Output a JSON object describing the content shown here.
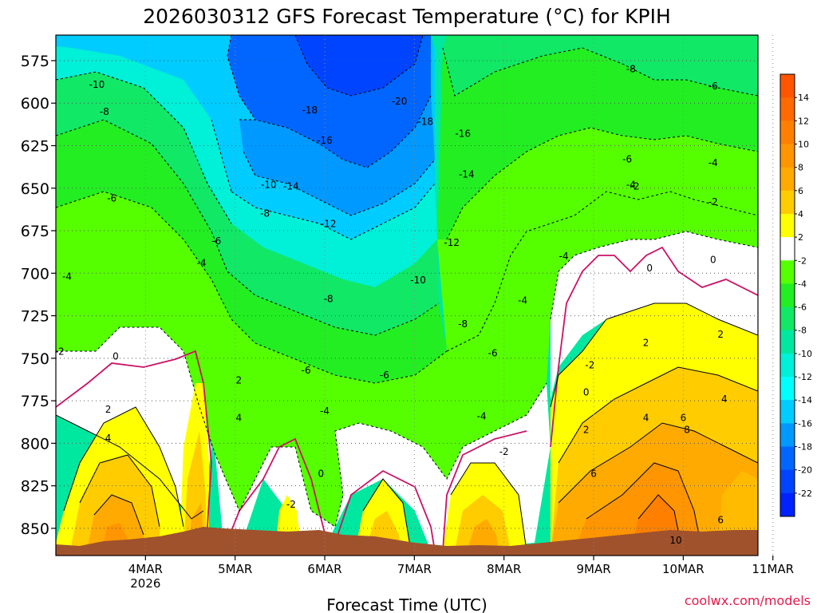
{
  "chart_data": {
    "type": "heatmap",
    "title": "2026030312 GFS Forecast Temperature (°C) for KPIH",
    "xlabel": "Forecast Time (UTC)",
    "ylabel": "",
    "credit": "coolwx.com/models",
    "y_axis": {
      "min": 560,
      "max": 866,
      "inverted": true,
      "ticks": [
        575,
        600,
        625,
        650,
        675,
        700,
        725,
        750,
        775,
        800,
        825,
        850
      ]
    },
    "x_axis": {
      "start_hour": -12,
      "end_hour": 176,
      "ticks": [
        {
          "hour": 12,
          "label": "4MAR",
          "sublabel": "2026"
        },
        {
          "hour": 36,
          "label": "5MAR",
          "sublabel": ""
        },
        {
          "hour": 60,
          "label": "6MAR",
          "sublabel": ""
        },
        {
          "hour": 84,
          "label": "7MAR",
          "sublabel": ""
        },
        {
          "hour": 108,
          "label": "8MAR",
          "sublabel": ""
        },
        {
          "hour": 132,
          "label": "9MAR",
          "sublabel": ""
        },
        {
          "hour": 156,
          "label": "10MAR",
          "sublabel": ""
        },
        {
          "hour": 180,
          "label": "11MAR",
          "sublabel": ""
        }
      ]
    },
    "grid": true,
    "colorbar": {
      "ticks": [
        14,
        12,
        10,
        8,
        6,
        4,
        2,
        -2,
        -4,
        -6,
        -8,
        -10,
        -12,
        -14,
        -16,
        -18,
        -20,
        -22
      ],
      "bands": [
        {
          "from": 14,
          "to": 16,
          "color": "#ff5500"
        },
        {
          "from": 12,
          "to": 14,
          "color": "#ff6a00"
        },
        {
          "from": 10,
          "to": 12,
          "color": "#ff8000"
        },
        {
          "from": 8,
          "to": 10,
          "color": "#ff9500"
        },
        {
          "from": 6,
          "to": 8,
          "color": "#ffaa00"
        },
        {
          "from": 4,
          "to": 6,
          "color": "#ffcc00"
        },
        {
          "from": 2,
          "to": 4,
          "color": "#ffff00"
        },
        {
          "from": -2,
          "to": 2,
          "color": "#ffffff"
        },
        {
          "from": -4,
          "to": -2,
          "color": "#55ff00"
        },
        {
          "from": -6,
          "to": -4,
          "color": "#22ee22"
        },
        {
          "from": -8,
          "to": -6,
          "color": "#11e866"
        },
        {
          "from": -10,
          "to": -8,
          "color": "#00e8a0"
        },
        {
          "from": -12,
          "to": -10,
          "color": "#00f0d8"
        },
        {
          "from": -14,
          "to": -12,
          "color": "#00ffff"
        },
        {
          "from": -16,
          "to": -14,
          "color": "#00ccff"
        },
        {
          "from": -18,
          "to": -16,
          "color": "#0099ff"
        },
        {
          "from": -20,
          "to": -18,
          "color": "#0066ff"
        },
        {
          "from": -22,
          "to": -20,
          "color": "#0044ff"
        },
        {
          "from": -24,
          "to": -22,
          "color": "#0022ff"
        }
      ]
    },
    "terrain_color": "#a0522d",
    "freezing_line_color": "#cc1166",
    "contour_labels": [
      {
        "text": "-10",
        "hour": -1,
        "p": 589
      },
      {
        "text": "-8",
        "hour": 1,
        "p": 605
      },
      {
        "text": "-6",
        "hour": 3,
        "p": 656
      },
      {
        "text": "-4",
        "hour": -9,
        "p": 702
      },
      {
        "text": "-2",
        "hour": -11,
        "p": 746
      },
      {
        "text": "0",
        "hour": 4,
        "p": 749
      },
      {
        "text": "2",
        "hour": 2,
        "p": 780
      },
      {
        "text": "4",
        "hour": 2,
        "p": 797
      },
      {
        "text": "-18",
        "hour": 56,
        "p": 604
      },
      {
        "text": "-20",
        "hour": 80,
        "p": 599
      },
      {
        "text": "-18",
        "hour": 87,
        "p": 611
      },
      {
        "text": "-16",
        "hour": 60,
        "p": 622
      },
      {
        "text": "-16",
        "hour": 97,
        "p": 618
      },
      {
        "text": "-14",
        "hour": 98,
        "p": 642
      },
      {
        "text": "-14",
        "hour": 51,
        "p": 649
      },
      {
        "text": "-10",
        "hour": 45,
        "p": 648
      },
      {
        "text": "-8",
        "hour": 44,
        "p": 665
      },
      {
        "text": "-6",
        "hour": 31,
        "p": 681
      },
      {
        "text": "-4",
        "hour": 27,
        "p": 694
      },
      {
        "text": "-12",
        "hour": 61,
        "p": 671
      },
      {
        "text": "-12",
        "hour": 94,
        "p": 682
      },
      {
        "text": "-10",
        "hour": 85,
        "p": 704
      },
      {
        "text": "-8",
        "hour": 61,
        "p": 715
      },
      {
        "text": "-8",
        "hour": 97,
        "p": 730
      },
      {
        "text": "-6",
        "hour": 55,
        "p": 757
      },
      {
        "text": "-6",
        "hour": 76,
        "p": 760
      },
      {
        "text": "-6",
        "hour": 105,
        "p": 747
      },
      {
        "text": "-4",
        "hour": 60,
        "p": 781
      },
      {
        "text": "-4",
        "hour": 102,
        "p": 784
      },
      {
        "text": "-4",
        "hour": 113,
        "p": 716
      },
      {
        "text": "-4",
        "hour": 124,
        "p": 690
      },
      {
        "text": "0",
        "hour": 59,
        "p": 818
      },
      {
        "text": "-2",
        "hour": 51,
        "p": 836
      },
      {
        "text": "-2",
        "hour": 108,
        "p": 805
      },
      {
        "text": "2",
        "hour": 37,
        "p": 763
      },
      {
        "text": "4",
        "hour": 37,
        "p": 785
      },
      {
        "text": "-2",
        "hour": 131,
        "p": 754
      },
      {
        "text": "0",
        "hour": 130,
        "p": 770
      },
      {
        "text": "2",
        "hour": 130,
        "p": 792
      },
      {
        "text": "6",
        "hour": 132,
        "p": 818
      },
      {
        "text": "-8",
        "hour": 142,
        "p": 580
      },
      {
        "text": "-6",
        "hour": 164,
        "p": 590
      },
      {
        "text": "-6",
        "hour": 141,
        "p": 633
      },
      {
        "text": "-4",
        "hour": 142,
        "p": 648
      },
      {
        "text": "-4",
        "hour": 164,
        "p": 635
      },
      {
        "text": "-2",
        "hour": 143,
        "p": 649
      },
      {
        "text": "-2",
        "hour": 164,
        "p": 658
      },
      {
        "text": "0",
        "hour": 147,
        "p": 697
      },
      {
        "text": "0",
        "hour": 164,
        "p": 692
      },
      {
        "text": "2",
        "hour": 146,
        "p": 741
      },
      {
        "text": "2",
        "hour": 166,
        "p": 736
      },
      {
        "text": "4",
        "hour": 146,
        "p": 785
      },
      {
        "text": "4",
        "hour": 167,
        "p": 774
      },
      {
        "text": "6",
        "hour": 156,
        "p": 785
      },
      {
        "text": "8",
        "hour": 157,
        "p": 792
      },
      {
        "text": "6",
        "hour": 166,
        "p": 845
      },
      {
        "text": "10",
        "hour": 154,
        "p": 857
      }
    ]
  }
}
